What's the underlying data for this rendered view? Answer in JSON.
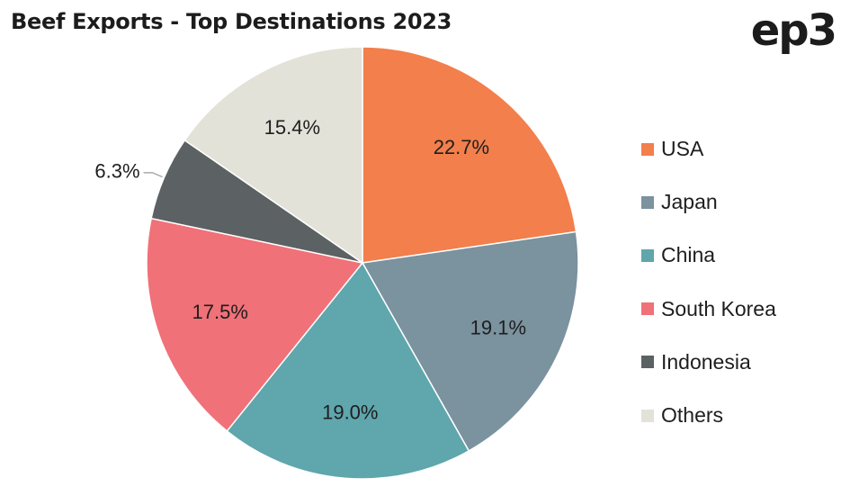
{
  "header": {
    "title": "Beef Exports - Top Destinations 2023",
    "logo_text": "ep3"
  },
  "chart_data": {
    "type": "pie",
    "title": "Beef Exports - Top Destinations 2023",
    "legend_position": "right",
    "slices": [
      {
        "name": "USA",
        "value": 22.7,
        "label": "22.7%",
        "color": "#f27f4c"
      },
      {
        "name": "Japan",
        "value": 19.1,
        "label": "19.1%",
        "color": "#7b929f"
      },
      {
        "name": "China",
        "value": 19.0,
        "label": "19.0%",
        "color": "#5fa6ad"
      },
      {
        "name": "South Korea",
        "value": 17.5,
        "label": "17.5%",
        "color": "#f07178"
      },
      {
        "name": "Indonesia",
        "value": 6.3,
        "label": "6.3%",
        "color": "#5c6163"
      },
      {
        "name": "Others",
        "value": 15.4,
        "label": "15.4%",
        "color": "#e3e2d8"
      }
    ]
  }
}
